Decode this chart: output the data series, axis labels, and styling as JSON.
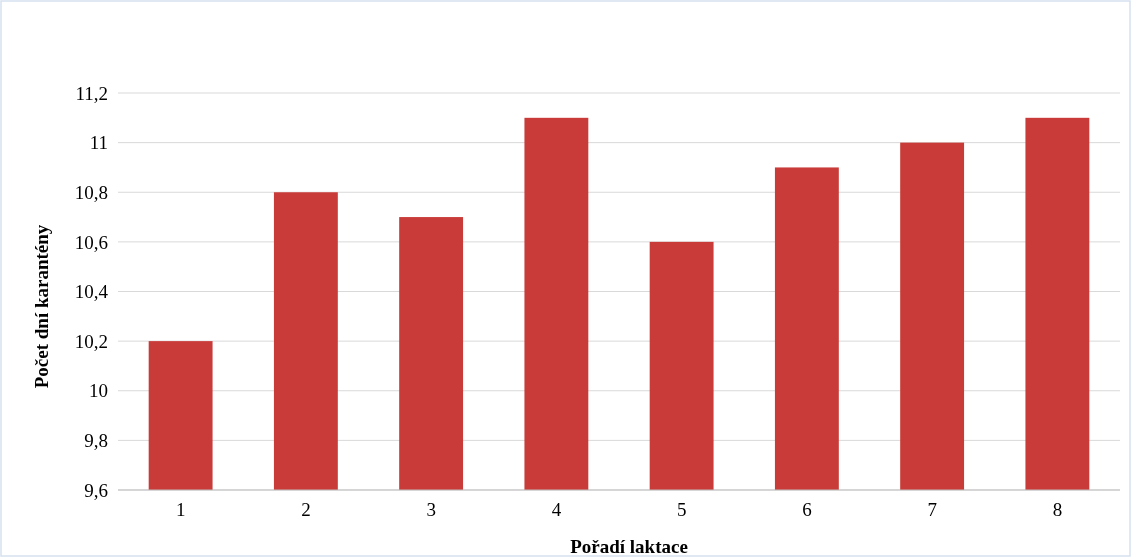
{
  "chart_data": {
    "type": "bar",
    "xlabel": "Pořadí laktace",
    "ylabel": "Počet dní karantény",
    "categories": [
      "1",
      "2",
      "3",
      "4",
      "5",
      "6",
      "7",
      "8"
    ],
    "values": [
      10.2,
      10.8,
      10.7,
      11.1,
      10.6,
      10.9,
      11,
      11.1
    ],
    "color": "#c93b39",
    "ylim": [
      9.6,
      11.2
    ],
    "yticks": [
      {
        "value": 9.6,
        "label": "9,6"
      },
      {
        "value": 9.8,
        "label": "9,8"
      },
      10,
      {
        "value": 10.2,
        "label": "10,2"
      },
      {
        "value": 10.4,
        "label": "10,4"
      },
      {
        "value": 10.6,
        "label": "10,6"
      },
      {
        "value": 10.8,
        "label": "10,8"
      },
      11,
      {
        "value": 11.2,
        "label": "11,2"
      }
    ],
    "grid": "y"
  }
}
